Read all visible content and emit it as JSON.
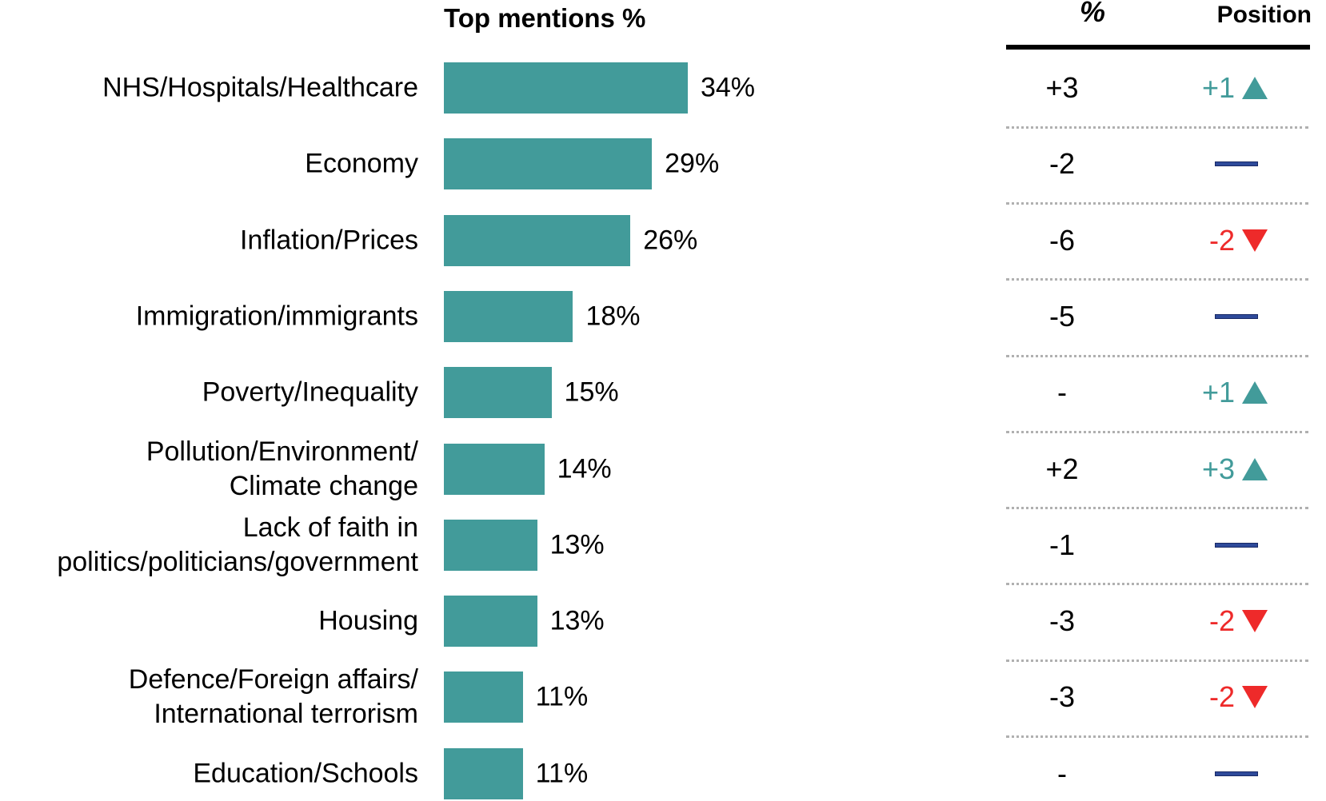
{
  "chart_data": {
    "type": "bar",
    "orientation": "horizontal",
    "title": "Top mentions %",
    "categories": [
      "NHS/Hospitals/Healthcare",
      "Economy",
      "Inflation/Prices",
      "Immigration/immigrants",
      "Poverty/Inequality",
      "Pollution/Environment/\nClimate change",
      "Lack of faith in\npolitics/politicians/government",
      "Housing",
      "Defence/Foreign affairs/\nInternational terrorism",
      "Education/Schools"
    ],
    "values": [
      34,
      29,
      26,
      18,
      15,
      14,
      13,
      13,
      11,
      11
    ],
    "value_labels": [
      "34%",
      "29%",
      "26%",
      "18%",
      "15%",
      "14%",
      "13%",
      "13%",
      "11%",
      "11%"
    ],
    "color": "#429b9a",
    "table": {
      "headers": [
        "%",
        "Position"
      ],
      "change": [
        "+3",
        "-2",
        "-6",
        "-5",
        "-",
        "+2",
        "-1",
        "-3",
        "-3",
        "-"
      ],
      "position_change": [
        1,
        0,
        -2,
        0,
        1,
        3,
        0,
        -2,
        -2,
        0
      ],
      "position_labels": [
        "+1",
        null,
        "-2",
        null,
        "+1",
        "+3",
        null,
        "-2",
        "-2",
        null
      ],
      "up_color": "#429b9a",
      "down_color": "#ee2a2a",
      "same_color": "#2e4a9a"
    }
  }
}
